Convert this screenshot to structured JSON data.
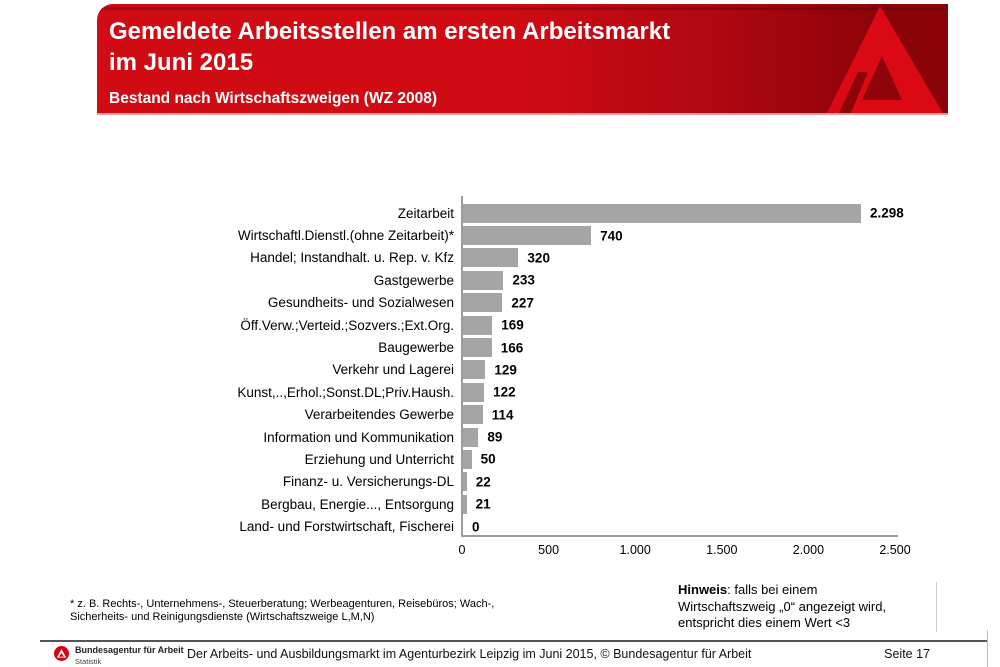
{
  "header": {
    "title_line1": "Gemeldete Arbeitsstellen am ersten Arbeitsmarkt",
    "title_line2": "im Juni 2015",
    "subtitle": "Bestand nach Wirtschaftszweigen (WZ 2008)",
    "colors": {
      "band_left": "#d10b14",
      "band_right": "#8a0309",
      "logo_fill": "#da0914",
      "logo_counter": "#8e0309"
    }
  },
  "chart_data": {
    "type": "bar",
    "orientation": "horizontal",
    "title": "Gemeldete Arbeitsstellen am ersten Arbeitsmarkt im Juni 2015",
    "subtitle": "Bestand nach Wirtschaftszweigen (WZ 2008)",
    "categories": [
      "Zeitarbeit",
      "Wirtschaftl.Dienstl.(ohne Zeitarbeit)*",
      "Handel; Instandhalt. u. Rep. v. Kfz",
      "Gastgewerbe",
      "Gesundheits- und Sozialwesen",
      "Öff.Verw.;Verteid.;Sozvers.;Ext.Org.",
      "Baugewerbe",
      "Verkehr und Lagerei",
      "Kunst,..,Erhol.;Sonst.DL;Priv.Haush.",
      "Verarbeitendes Gewerbe",
      "Information und Kommunikation",
      "Erziehung und Unterricht",
      "Finanz- u. Versicherungs-DL",
      "Bergbau, Energie..., Entsorgung",
      "Land- und Forstwirtschaft, Fischerei"
    ],
    "values": [
      2298,
      740,
      320,
      233,
      227,
      169,
      166,
      129,
      122,
      114,
      89,
      50,
      22,
      21,
      0
    ],
    "value_labels": [
      "2.298",
      "740",
      "320",
      "233",
      "227",
      "169",
      "166",
      "129",
      "122",
      "114",
      "89",
      "50",
      "22",
      "21",
      "0"
    ],
    "xlim": [
      0,
      2500
    ],
    "x_ticks": [
      {
        "value": 0,
        "label": "0"
      },
      {
        "value": 500,
        "label": "500"
      },
      {
        "value": 1000,
        "label": "1.000"
      },
      {
        "value": 1500,
        "label": "1.500"
      },
      {
        "value": 2000,
        "label": "2.000"
      },
      {
        "value": 2500,
        "label": "2.500"
      }
    ],
    "xlabel": "",
    "ylabel": "",
    "bar_color": "#a5a5a5",
    "grid": false,
    "legend": false
  },
  "footnote": {
    "line1": "* z. B. Rechts-, Unternehmens-, Steuerberatung; Werbeagenturen, Reisebüros; Wach-,",
    "line2": "Sicherheits- und Reinigungsdienste (Wirtschaftszweige L,M,N)"
  },
  "hinweis": {
    "label": "Hinweis",
    "line1_rest": ": falls bei einem",
    "line2": "Wirtschaftszweig „0“ angezeigt wird,",
    "line3": "entspricht dies einem Wert <3"
  },
  "footer": {
    "logo_text": "Bundesagentur für Arbeit",
    "logo_subtext": "Statistik",
    "source_text": "Der Arbeits- und Ausbildungsmarkt im Agenturbezirk Leipzig im Juni 2015, © Bundesagentur für Arbeit",
    "page": "Seite 17"
  }
}
